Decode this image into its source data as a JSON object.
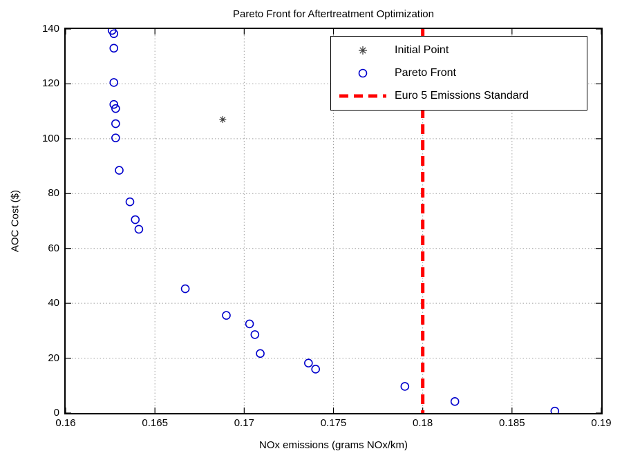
{
  "chart_data": {
    "type": "scatter",
    "title": "Pareto Front for Aftertreatment Optimization",
    "xlabel": "NOx emissions (grams NOx/km)",
    "ylabel": "AOC Cost ($)",
    "xlim": [
      0.16,
      0.19
    ],
    "ylim": [
      0,
      140
    ],
    "xticks": [
      0.16,
      0.165,
      0.17,
      0.175,
      0.18,
      0.185,
      0.19
    ],
    "xtick_labels": [
      "0.16",
      "0.165",
      "0.17",
      "0.175",
      "0.18",
      "0.185",
      "0.19"
    ],
    "yticks": [
      0,
      20,
      40,
      60,
      80,
      100,
      120,
      140
    ],
    "ytick_labels": [
      "0",
      "20",
      "40",
      "60",
      "80",
      "100",
      "120",
      "140"
    ],
    "grid": true,
    "colors": {
      "pareto": "#0000cc",
      "initial_point": "#404040",
      "euro5_line": "#ff0000",
      "grid": "#9e9e9e",
      "axis": "#000000",
      "background": "#ffffff"
    },
    "legend": {
      "position": "upper-right",
      "entries": [
        {
          "label": "Initial Point",
          "marker": "asterisk"
        },
        {
          "label": "Pareto Front",
          "marker": "circle"
        },
        {
          "label": "Euro 5 Emissions Standard",
          "marker": "dashed-line"
        }
      ]
    },
    "series": [
      {
        "name": "Initial Point",
        "marker": "asterisk",
        "color_key": "initial_point",
        "points": [
          [
            0.1688,
            107
          ]
        ]
      },
      {
        "name": "Pareto Front",
        "marker": "circle",
        "color_key": "pareto",
        "points": [
          [
            0.1626,
            139.5
          ],
          [
            0.1627,
            138.3
          ],
          [
            0.1627,
            133.0
          ],
          [
            0.1627,
            120.5
          ],
          [
            0.1627,
            112.5
          ],
          [
            0.1628,
            111.0
          ],
          [
            0.1628,
            105.5
          ],
          [
            0.1628,
            100.3
          ],
          [
            0.163,
            88.5
          ],
          [
            0.1636,
            77.0
          ],
          [
            0.1639,
            70.5
          ],
          [
            0.1641,
            67.0
          ],
          [
            0.1667,
            45.3
          ],
          [
            0.169,
            35.6
          ],
          [
            0.1703,
            32.5
          ],
          [
            0.1706,
            28.6
          ],
          [
            0.1709,
            21.7
          ],
          [
            0.1736,
            18.2
          ],
          [
            0.174,
            16.0
          ],
          [
            0.179,
            9.7
          ],
          [
            0.1818,
            4.2
          ],
          [
            0.1874,
            0.7
          ]
        ]
      },
      {
        "name": "Euro 5 Emissions Standard",
        "kind": "vline",
        "color_key": "euro5_line",
        "x": 0.18,
        "line_style": "dashed"
      }
    ]
  }
}
